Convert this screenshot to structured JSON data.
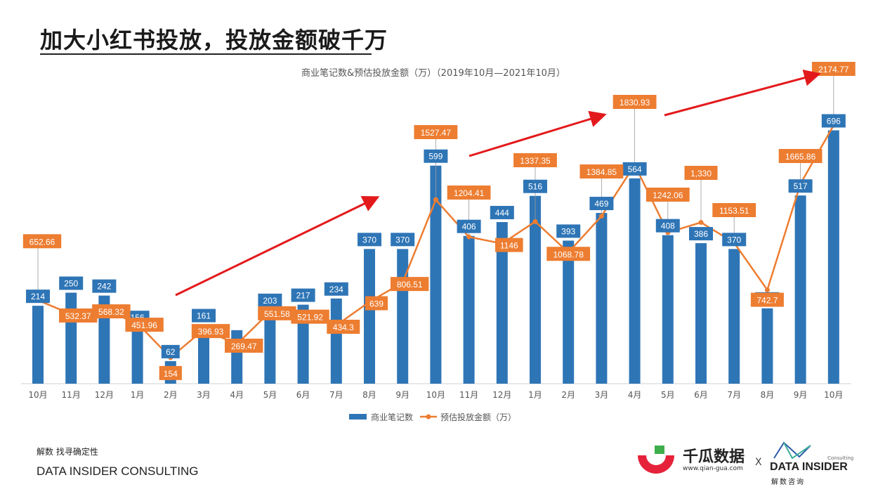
{
  "page": {
    "title": "加大小红书投放，投放金额破千万"
  },
  "chart_data": {
    "type": "bar",
    "title": "商业笔记数&预估投放金额（万）（2019年10月—2021年10月）",
    "categories": [
      "10月",
      "11月",
      "12月",
      "1月",
      "2月",
      "3月",
      "4月",
      "5月",
      "6月",
      "7月",
      "8月",
      "9月",
      "10月",
      "11月",
      "12月",
      "1月",
      "2月",
      "3月",
      "4月",
      "5月",
      "6月",
      "7月",
      "8月",
      "9月",
      "10月"
    ],
    "series": [
      {
        "name": "商业笔记数",
        "type": "bar",
        "color": "#2E75B6",
        "values": [
          214,
          250,
          242,
          156,
          62,
          161,
          147,
          203,
          217,
          234,
          370,
          370,
          599,
          406,
          444,
          516,
          393,
          469,
          564,
          408,
          386,
          370,
          207,
          517,
          696
        ],
        "value_labels": [
          "214",
          "250",
          "242",
          "156",
          "62",
          "161",
          "",
          "203",
          "217",
          "234",
          "370",
          "370",
          "599",
          "406",
          "444",
          "516",
          "393",
          "469",
          "564",
          "408",
          "386",
          "370",
          "207",
          "517",
          "696"
        ]
      },
      {
        "name": "预估投放金额（万）",
        "type": "line",
        "color": "#ED7D31",
        "values": [
          652.66,
          532.37,
          568.32,
          451.96,
          154,
          396.93,
          269.47,
          551.58,
          521.92,
          434.3,
          639,
          806.51,
          1527.47,
          1204.41,
          1146,
          1337.35,
          1068.78,
          1384.85,
          1830.93,
          1242.06,
          1330,
          1153.51,
          742.7,
          1665.86,
          2174.77
        ],
        "value_labels": [
          "652.66",
          "532.37",
          "568.32",
          "451.96",
          "154",
          "396.93",
          "269.47",
          "551.58",
          "521.92",
          "434.3",
          "639",
          "806.51",
          "1527.47",
          "1204.41",
          "1146",
          "1337.35",
          "1068.78",
          "1384.85",
          "1830.93",
          "1242.06",
          "1,330",
          "1153.51",
          "742.7",
          "1665.86",
          "2174.77"
        ]
      }
    ],
    "legend_position": "bottom",
    "grid": false,
    "annotations": "three red trend arrows pointing up-right"
  },
  "footer": {
    "tagline": "解数 找寻确定性",
    "org": "DATA INSIDER CONSULTING"
  },
  "logos": {
    "qiangua_name": "千瓜数据",
    "qiangua_url": "www.qian-gua.com",
    "separator": "X",
    "di_consulting": "Consulting",
    "di_name": "DATA INSIDER",
    "di_cn": "解数咨询"
  },
  "colors": {
    "bar": "#2E75B6",
    "line": "#ED7D31",
    "arrow": "#E31A1C"
  }
}
